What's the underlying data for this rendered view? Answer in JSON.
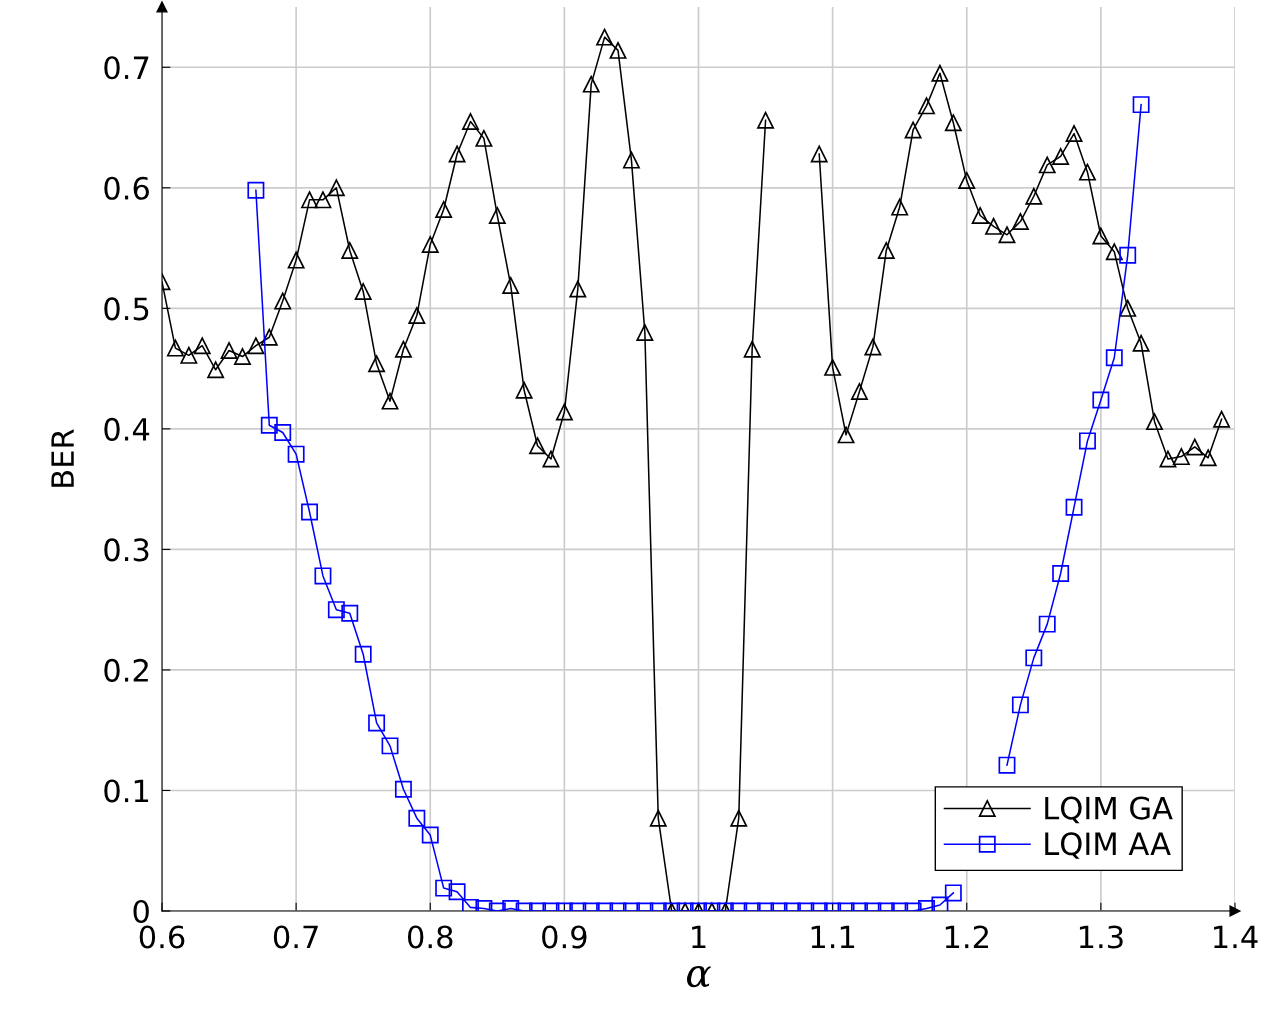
{
  "chart_data": {
    "type": "line",
    "xlabel": "α",
    "ylabel": "BER",
    "xlim": [
      0.6,
      1.4
    ],
    "ylim": [
      0,
      0.75
    ],
    "xticks": [
      0.6,
      0.7,
      0.8,
      0.9,
      1,
      1.1,
      1.2,
      1.3,
      1.4
    ],
    "yticks": [
      0,
      0.1,
      0.2,
      0.3,
      0.4,
      0.5,
      0.6,
      0.7
    ],
    "grid": true,
    "legend": "bottom right",
    "series": [
      {
        "name": "LQIM GA",
        "color": "#000000",
        "marker": "triangle",
        "x": [
          0.6,
          0.61,
          0.62,
          0.63,
          0.64,
          0.65,
          0.66,
          0.67,
          0.68,
          0.69,
          0.7,
          0.71,
          0.72,
          0.73,
          0.74,
          0.75,
          0.76,
          0.77,
          0.78,
          0.79,
          0.8,
          0.81,
          0.82,
          0.83,
          0.84,
          0.85,
          0.86,
          0.87,
          0.88,
          0.89,
          0.9,
          0.91,
          0.92,
          0.93,
          0.94,
          0.95,
          0.96,
          0.97,
          0.98,
          0.99,
          1.0,
          1.01,
          1.02,
          1.03,
          1.04,
          1.05,
          1.06,
          1.07,
          1.08,
          1.09,
          1.1,
          1.11,
          1.12,
          1.13,
          1.14,
          1.15,
          1.16,
          1.17,
          1.18,
          1.19,
          1.2,
          1.21,
          1.22,
          1.23,
          1.24,
          1.25,
          1.26,
          1.27,
          1.28,
          1.29,
          1.3,
          1.31,
          1.32,
          1.33,
          1.34,
          1.35,
          1.36,
          1.37,
          1.38,
          1.39
        ],
        "values": [
          0.522,
          0.467,
          0.461,
          0.469,
          0.449,
          0.465,
          0.46,
          0.469,
          0.476,
          0.506,
          0.54,
          0.59,
          0.59,
          0.6,
          0.548,
          0.514,
          0.454,
          0.423,
          0.466,
          0.494,
          0.553,
          0.582,
          0.628,
          0.655,
          0.641,
          0.577,
          0.519,
          0.432,
          0.386,
          0.375,
          0.414,
          0.516,
          0.686,
          0.725,
          0.714,
          0.623,
          0.48,
          0.077,
          0,
          0,
          0,
          0,
          0,
          0.077,
          0.466,
          0.656,
          null,
          null,
          null,
          0.628,
          0.451,
          0.395,
          0.431,
          0.468,
          0.548,
          0.584,
          0.648,
          0.668,
          0.695,
          0.654,
          0.606,
          0.577,
          0.568,
          0.561,
          0.572,
          0.593,
          0.619,
          0.626,
          0.645,
          0.613,
          0.56,
          0.547,
          0.5,
          0.471,
          0.406,
          0.375,
          0.377,
          0.385,
          0.376,
          0.408
        ]
      },
      {
        "name": "LQIM AA",
        "color": "#0000ff",
        "marker": "square",
        "x": [
          0.67,
          0.68,
          0.69,
          0.7,
          0.71,
          0.72,
          0.73,
          0.74,
          0.75,
          0.76,
          0.77,
          0.78,
          0.79,
          0.8,
          0.81,
          0.82,
          0.83,
          0.84,
          0.85,
          0.86,
          0.87,
          0.88,
          0.89,
          0.9,
          0.91,
          0.92,
          0.93,
          0.94,
          0.95,
          0.96,
          0.97,
          0.98,
          0.99,
          1.0,
          1.01,
          1.02,
          1.03,
          1.04,
          1.05,
          1.06,
          1.07,
          1.08,
          1.09,
          1.1,
          1.11,
          1.12,
          1.13,
          1.14,
          1.15,
          1.16,
          1.17,
          1.18,
          1.19,
          1.2,
          1.21,
          1.22,
          1.23,
          1.24,
          1.25,
          1.26,
          1.27,
          1.28,
          1.29,
          1.3,
          1.31,
          1.32,
          1.33
        ],
        "values": [
          0.598,
          0.403,
          0.397,
          0.379,
          0.331,
          0.278,
          0.25,
          0.247,
          0.213,
          0.156,
          0.137,
          0.101,
          0.077,
          0.063,
          0.019,
          0.016,
          0.003,
          0.002,
          0,
          0.002,
          0,
          0,
          0,
          0,
          0,
          0,
          0,
          0,
          0,
          0,
          0,
          0,
          0,
          0,
          0,
          0,
          0,
          0,
          0,
          0,
          0,
          0,
          0,
          0,
          0,
          0,
          0,
          0,
          0,
          0,
          0.002,
          0.005,
          0.015,
          null,
          null,
          null,
          0.121,
          0.171,
          0.21,
          0.238,
          0.28,
          0.335,
          0.39,
          0.424,
          0.459,
          0.544,
          0.669
        ]
      }
    ]
  }
}
